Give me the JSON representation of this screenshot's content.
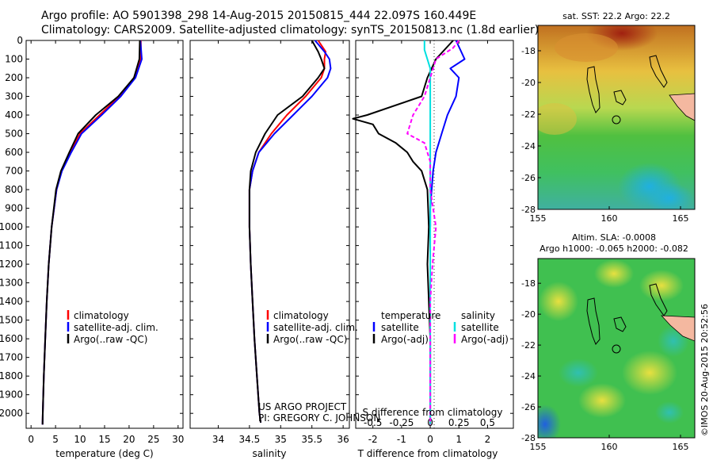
{
  "header": {
    "line1": "Argo profile: AO 5901398_298 14-Aug-2015 20150815_444 22.097S 160.449E",
    "line2": "Climatology: CARS2009. Satellite-adjusted climatology: synTS_20150813.nc (1.8d earlier)"
  },
  "colors": {
    "climatology": "#ff0000",
    "satellite": "#0000ff",
    "argo": "#000000",
    "argo_adj_s": "#ff00ff",
    "satellite_s": "#00e0e0"
  },
  "legend": {
    "climatology": "climatology",
    "satellite_adj_clim": "satellite-adj. clim.",
    "argo_raw": "Argo(..raw -QC)",
    "temperature": "temperature",
    "salinity": "salinity",
    "satellite": "satellite",
    "argo_adj": "Argo(-adj)"
  },
  "annotations": {
    "project": "US ARGO PROJECT",
    "pi": "PI: GREGORY C. JOHNSON"
  },
  "maps": {
    "sst": {
      "title": "sat. SST: 22.2  Argo: 22.2",
      "xticks": [
        "155",
        "160",
        "165"
      ],
      "yticks": [
        "-18",
        "-20",
        "-22",
        "-24",
        "-26",
        "-28"
      ]
    },
    "sla": {
      "title1": "Altim. SLA: -0.0008",
      "title2": "Argo h1000: -0.065 h2000: -0.082",
      "xticks": [
        "155",
        "160",
        "165"
      ],
      "yticks": [
        "-18",
        "-20",
        "-22",
        "-24",
        "-26",
        "-28"
      ]
    }
  },
  "footer": "©IMOS 20-Aug-2015 20:52:56",
  "chart_data": [
    {
      "type": "line",
      "xlabel": "temperature (deg C)",
      "xlim": [
        -1,
        31
      ],
      "ylim": [
        0,
        2080
      ],
      "xticks": [
        "0",
        "5",
        "10",
        "15",
        "20",
        "25",
        "30"
      ],
      "yticks": [
        "0",
        "100",
        "200",
        "300",
        "400",
        "500",
        "600",
        "700",
        "800",
        "900",
        "1000",
        "1100",
        "1200",
        "1300",
        "1400",
        "1500",
        "1600",
        "1700",
        "1800",
        "1900",
        "2000"
      ],
      "series": [
        {
          "key": "climatology",
          "depth": [
            0,
            100,
            200,
            300,
            400,
            500,
            600,
            700,
            800,
            1000,
            1200,
            1400,
            1600,
            1800,
            2000,
            2060
          ],
          "values": [
            22.4,
            22.4,
            21.0,
            18.0,
            14.0,
            10.0,
            8.0,
            6.2,
            5.2,
            4.2,
            3.6,
            3.2,
            2.9,
            2.6,
            2.4,
            2.35
          ]
        },
        {
          "key": "satellite",
          "depth": [
            0,
            100,
            200,
            300,
            400,
            500,
            600,
            700,
            800,
            1000,
            1200,
            1400,
            1600,
            1800,
            2000,
            2060
          ],
          "values": [
            22.3,
            22.6,
            21.3,
            18.3,
            14.4,
            10.3,
            8.2,
            6.3,
            5.2,
            4.2,
            3.6,
            3.2,
            2.9,
            2.6,
            2.4,
            2.35
          ]
        },
        {
          "key": "argo",
          "depth": [
            0,
            100,
            200,
            300,
            400,
            500,
            600,
            700,
            800,
            1000,
            1200,
            1400,
            1600,
            1800,
            2000,
            2060
          ],
          "values": [
            22.2,
            22.1,
            21.0,
            17.8,
            13.2,
            9.6,
            7.8,
            6.1,
            5.1,
            4.2,
            3.6,
            3.2,
            2.9,
            2.6,
            2.4,
            2.35
          ]
        }
      ]
    },
    {
      "type": "line",
      "xlabel": "salinity",
      "xlim": [
        33.55,
        36.1
      ],
      "ylim": [
        0,
        2080
      ],
      "xticks": [
        "34",
        "34.5",
        "35",
        "35.5",
        "36"
      ],
      "series": [
        {
          "key": "climatology",
          "depth": [
            0,
            60,
            100,
            150,
            200,
            300,
            400,
            500,
            600,
            700,
            800,
            1000,
            1200,
            1400,
            1600,
            1800,
            2000,
            2050
          ],
          "values": [
            35.6,
            35.72,
            35.7,
            35.7,
            35.65,
            35.4,
            35.1,
            34.85,
            34.65,
            34.55,
            34.5,
            34.5,
            34.52,
            34.55,
            34.58,
            34.62,
            34.66,
            34.68
          ]
        },
        {
          "key": "satellite",
          "depth": [
            0,
            60,
            100,
            150,
            200,
            300,
            400,
            500,
            600,
            700,
            800,
            1000,
            1200,
            1400,
            1600,
            1800,
            2000,
            2050
          ],
          "values": [
            35.55,
            35.7,
            35.78,
            35.8,
            35.75,
            35.5,
            35.2,
            34.9,
            34.65,
            34.55,
            34.5,
            34.5,
            34.52,
            34.55,
            34.58,
            34.62,
            34.66,
            34.68
          ]
        },
        {
          "key": "argo",
          "depth": [
            0,
            60,
            100,
            150,
            200,
            300,
            400,
            500,
            600,
            700,
            800,
            1000,
            1200,
            1400,
            1600,
            1800,
            2000,
            2050
          ],
          "values": [
            35.5,
            35.6,
            35.65,
            35.7,
            35.6,
            35.35,
            34.95,
            34.75,
            34.6,
            34.52,
            34.5,
            34.5,
            34.52,
            34.55,
            34.58,
            34.62,
            34.66,
            34.68
          ]
        }
      ]
    },
    {
      "type": "line",
      "xlabel": "T difference from climatology",
      "xlabel_top": "S difference from climatology",
      "xlim": [
        -2.6,
        2.9
      ],
      "slim": [
        -0.65,
        0.725
      ],
      "ylim": [
        0,
        2080
      ],
      "xticks": [
        "-2",
        "-1",
        "0",
        "1",
        "2"
      ],
      "sticks": [
        "-0.5",
        "-0.25",
        "0",
        "0.25",
        "0.5"
      ],
      "series": [
        {
          "key": "satellite_T",
          "depth": [
            0,
            100,
            150,
            200,
            300,
            400,
            500,
            600,
            700,
            800,
            900,
            1000
          ],
          "values": [
            0.9,
            1.2,
            0.7,
            1.0,
            0.9,
            0.6,
            0.4,
            0.2,
            0.1,
            0.05,
            0,
            0
          ]
        },
        {
          "key": "argo_T",
          "depth": [
            0,
            100,
            200,
            300,
            400,
            420,
            450,
            500,
            550,
            600,
            650,
            700,
            800,
            1000,
            1200,
            1400,
            1600,
            1800,
            2000,
            2060
          ],
          "values": [
            0.8,
            0.2,
            -0.1,
            -0.3,
            -2.2,
            -2.7,
            -2.0,
            -1.8,
            -1.2,
            -0.8,
            -0.6,
            -0.3,
            -0.1,
            -0.05,
            -0.1,
            -0.05,
            0,
            0,
            0,
            0
          ]
        },
        {
          "key": "satellite_S",
          "depth": [
            0,
            50,
            150,
            300,
            500,
            800,
            1200,
            1600,
            2060
          ],
          "values": [
            -0.05,
            -0.05,
            0.0,
            0.0,
            0.0,
            0.0,
            0.0,
            0.0,
            0.0
          ]
        },
        {
          "key": "argo_S",
          "depth": [
            0,
            40,
            100,
            200,
            300,
            400,
            500,
            550,
            650,
            800,
            1000,
            1200,
            1400,
            1600,
            1800,
            2000,
            2060
          ],
          "values": [
            0.25,
            0.2,
            0.05,
            0.0,
            -0.05,
            -0.15,
            -0.2,
            -0.05,
            0.0,
            0.0,
            0.05,
            0.02,
            0.0,
            0.0,
            0.0,
            0.0,
            0.0
          ]
        }
      ]
    }
  ]
}
